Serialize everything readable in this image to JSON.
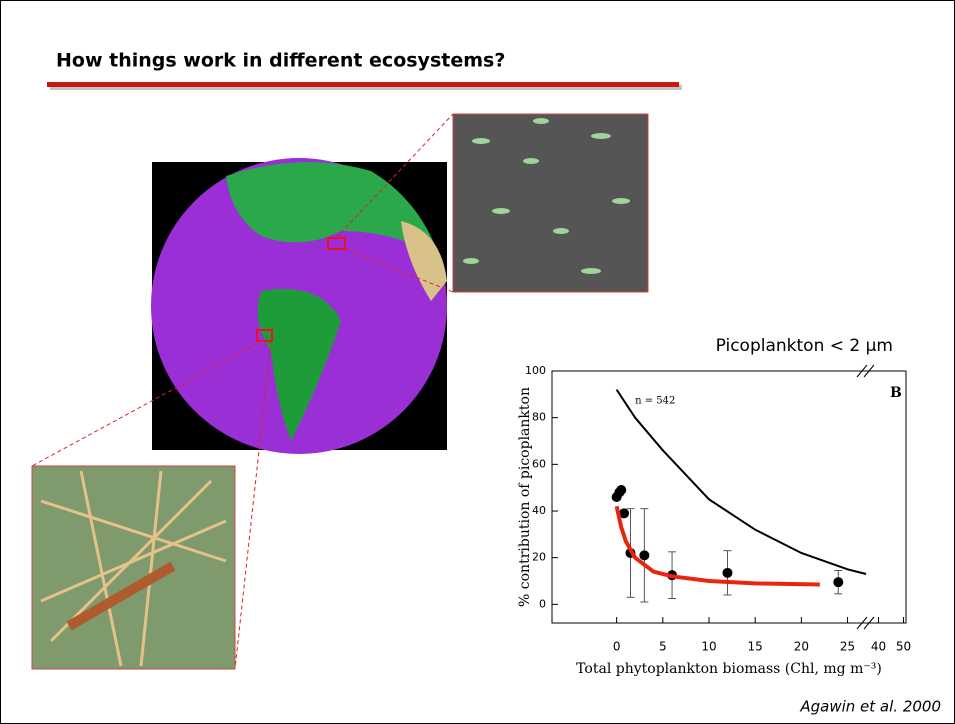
{
  "slide": {
    "title": "How things work in different ecosystems?",
    "image_caption": "Picoplankton < 2 μm",
    "citation": "Agawin et al. 2000"
  },
  "chart_data": {
    "type": "scatter",
    "panel_label": "B",
    "annotation": "n = 542",
    "xlabel": "Total phytoplankton biomass (Chl, mg m⁻³)",
    "ylabel": "% contribution of picoplankton",
    "xlim": [
      -7,
      51
    ],
    "x_break": [
      27,
      35
    ],
    "ylim": [
      -8,
      100
    ],
    "xticks": [
      0,
      5,
      10,
      15,
      20,
      25,
      40,
      50
    ],
    "yticks": [
      0,
      20,
      40,
      60,
      80,
      100
    ],
    "series": [
      {
        "style": "points",
        "color": "#000000",
        "x": [
          0,
          0.3,
          0.5,
          0.8,
          1.5,
          3,
          6,
          12,
          24
        ],
        "values": [
          46,
          48,
          49,
          39,
          22,
          21,
          12.5,
          13.5,
          9.5
        ],
        "errors": [
          null,
          null,
          null,
          null,
          19,
          20,
          10,
          9.5,
          5
        ]
      },
      {
        "style": "line",
        "color": "#000000",
        "x": [
          0,
          2,
          5,
          10,
          15,
          20,
          25,
          27
        ],
        "values": [
          92,
          80,
          66,
          45,
          32,
          22,
          15,
          13
        ]
      },
      {
        "style": "line",
        "color": "#e8250e",
        "x": [
          0,
          0.5,
          1,
          2,
          4,
          6,
          10,
          15,
          22
        ],
        "values": [
          42,
          33,
          27,
          20,
          14,
          12,
          10,
          9,
          8.5
        ]
      }
    ]
  }
}
